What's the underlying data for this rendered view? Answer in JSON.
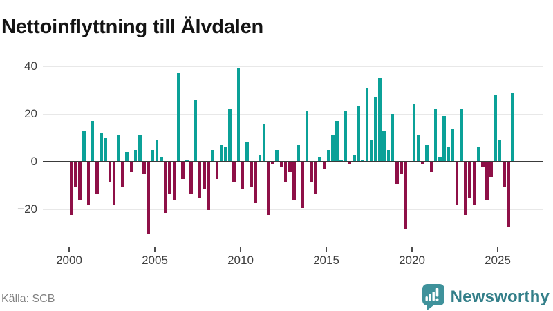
{
  "title": "Nettoinflyttning till Älvdalen",
  "source": "Källa: SCB",
  "brand": {
    "name": "Newsworthy",
    "icon": "newsworthy-speech-bubble-chart-icon",
    "icon_color": "#3f929b",
    "text_color": "#337f89"
  },
  "chart_data": {
    "type": "bar",
    "title": "Nettoinflyttning till Älvdalen",
    "frequency": "quarterly",
    "start": "2000-Q1",
    "end": "2025-Q4",
    "values": [
      -22,
      -10,
      -16,
      13,
      -18,
      17,
      -13,
      12,
      10,
      -8,
      -18,
      11,
      -10,
      4,
      -4,
      5,
      11,
      -5,
      -30,
      5,
      9,
      2,
      -21,
      -13,
      -16,
      37,
      -7,
      1,
      -13,
      26,
      -15,
      -11,
      -20,
      5,
      -7,
      7,
      6,
      22,
      -8,
      39,
      -11,
      8,
      -10,
      -17,
      3,
      16,
      -22,
      -1,
      5,
      -2,
      -8,
      -4,
      -16,
      7,
      -19,
      21,
      -8,
      -13,
      2,
      -3,
      5,
      11,
      17,
      1,
      21,
      -1,
      3,
      23,
      1,
      31,
      9,
      27,
      35,
      13,
      5,
      20,
      -9,
      -5,
      -28,
      0,
      24,
      11,
      -1,
      7,
      -4,
      22,
      2,
      19,
      6,
      14,
      -18,
      22,
      -22,
      -15,
      -18,
      6,
      -2,
      -16,
      -6,
      28,
      9,
      -10,
      -27,
      29
    ],
    "years": [
      2000,
      2001,
      2002,
      2003,
      2004,
      2005,
      2006,
      2007,
      2008,
      2009,
      2010,
      2011,
      2012,
      2013,
      2014,
      2015,
      2016,
      2017,
      2018,
      2019,
      2020,
      2021,
      2022,
      2023,
      2024,
      2025
    ],
    "x_ticks": [
      {
        "label": "2000",
        "year": 2000
      },
      {
        "label": "2005",
        "year": 2005
      },
      {
        "label": "2010",
        "year": 2010
      },
      {
        "label": "2015",
        "year": 2015
      },
      {
        "label": "2020",
        "year": 2020
      },
      {
        "label": "2025",
        "year": 2025
      }
    ],
    "y_ticks": [
      {
        "label": "40",
        "value": 40
      },
      {
        "label": "20",
        "value": 20
      },
      {
        "label": "0",
        "value": 0
      },
      {
        "label": "−20",
        "value": -20
      }
    ],
    "ylim": [
      -33,
      42
    ],
    "grid": "horizontal",
    "legend": "none",
    "xlabel": "",
    "ylabel": "",
    "colors": {
      "positive": "#0ba198",
      "negative": "#8e1047"
    }
  }
}
